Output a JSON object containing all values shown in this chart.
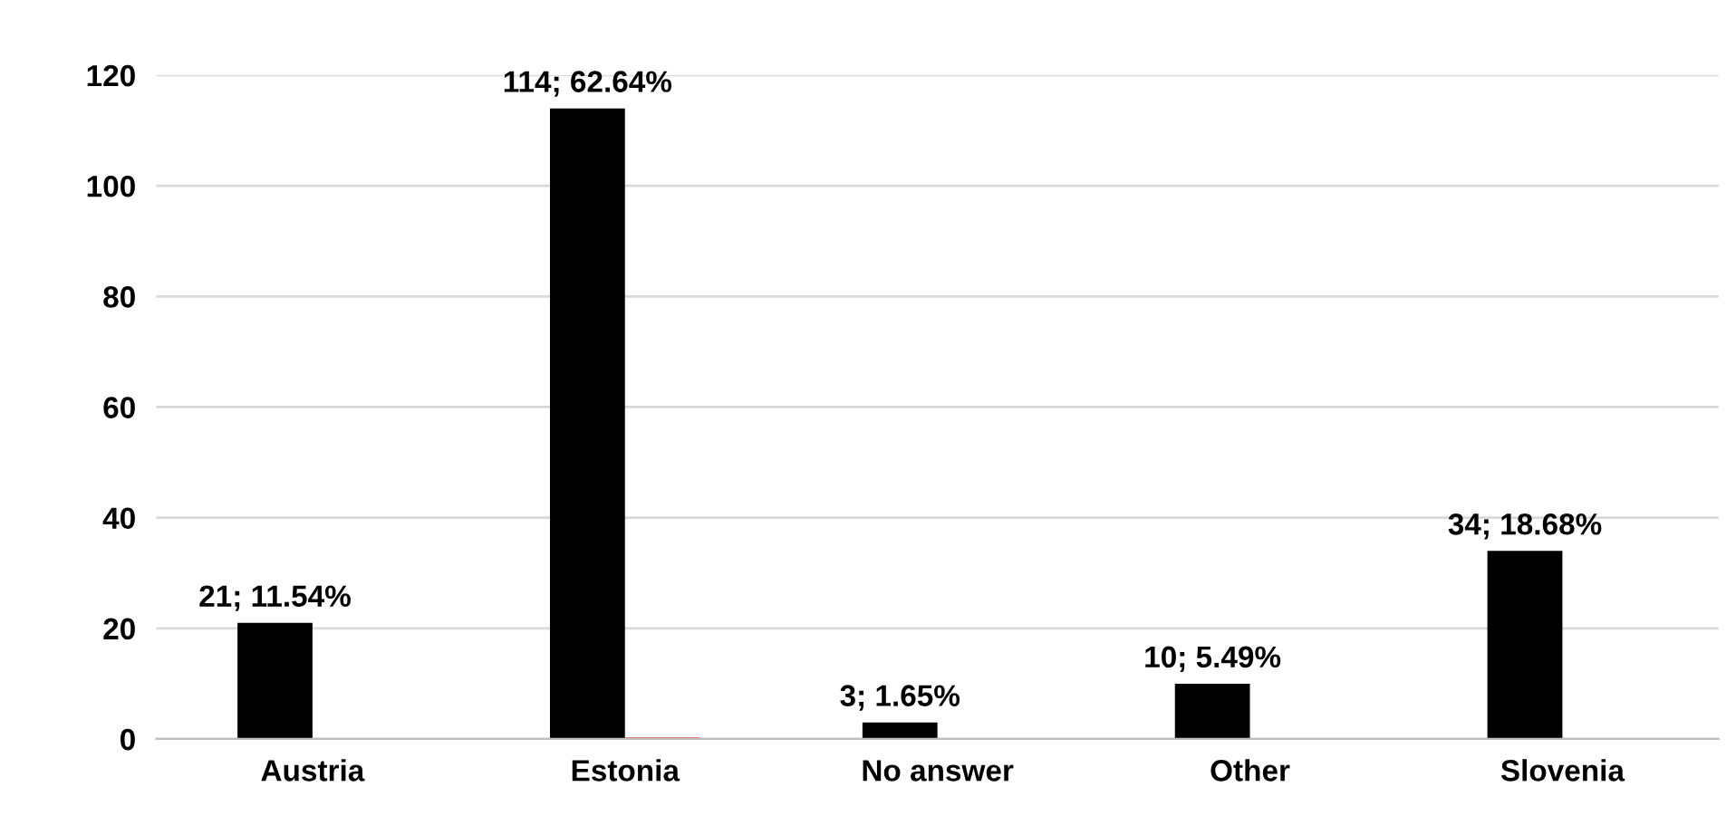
{
  "chart_data": {
    "type": "bar",
    "categories": [
      "Austria",
      "Estonia",
      "No answer",
      "Other",
      "Slovenia"
    ],
    "series": [
      {
        "color": "#000000",
        "values": [
          21,
          114,
          3,
          10,
          34
        ],
        "value_labels": [
          "21; 11.54%",
          "114; 62.64%",
          "3; 1.65%",
          "10; 5.49%",
          "34; 18.68%"
        ]
      },
      {
        "color": "#e8442e",
        "values": [
          null,
          0.3,
          null,
          null,
          null
        ]
      }
    ],
    "ylim": [
      0,
      120
    ],
    "yticks": [
      0,
      20,
      40,
      60,
      80,
      100,
      120
    ],
    "grid": "y"
  }
}
